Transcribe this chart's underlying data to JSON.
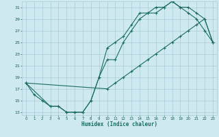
{
  "xlabel": "Humidex (Indice chaleur)",
  "bg_color": "#ceeaf0",
  "grid_color": "#aacdd8",
  "line_color": "#1a6b60",
  "marker": "+",
  "xlim": [
    -0.5,
    23.5
  ],
  "ylim": [
    12.5,
    32.0
  ],
  "xticks": [
    0,
    1,
    2,
    3,
    4,
    5,
    6,
    7,
    8,
    9,
    10,
    11,
    12,
    13,
    14,
    15,
    16,
    17,
    18,
    19,
    20,
    21,
    22,
    23
  ],
  "yticks": [
    13,
    15,
    17,
    19,
    21,
    23,
    25,
    27,
    29,
    31
  ],
  "line1_x": [
    0,
    1,
    2,
    3,
    4,
    5,
    6,
    7,
    8,
    9,
    10,
    11,
    12,
    13,
    14,
    15,
    16,
    17,
    18,
    19,
    20,
    21,
    22,
    23
  ],
  "line1_y": [
    18,
    16,
    15,
    14,
    14,
    13,
    13,
    13,
    15,
    19,
    22,
    22,
    25,
    27,
    29,
    30,
    30,
    31,
    32,
    31,
    30,
    29,
    27,
    25
  ],
  "line2_x": [
    0,
    3,
    4,
    5,
    6,
    7,
    8,
    9,
    10,
    11,
    12,
    13,
    14,
    15,
    16,
    17,
    18,
    19,
    20,
    21,
    22,
    23
  ],
  "line2_y": [
    18,
    14,
    14,
    13,
    13,
    13,
    15,
    19,
    24,
    25,
    26,
    28,
    30,
    30,
    31,
    31,
    32,
    31,
    31,
    30,
    29,
    25
  ],
  "line3_x": [
    0,
    10,
    11,
    12,
    13,
    14,
    15,
    16,
    17,
    18,
    19,
    20,
    21,
    22,
    23
  ],
  "line3_y": [
    18,
    17,
    18,
    19,
    20,
    21,
    22,
    23,
    24,
    25,
    26,
    27,
    28,
    29,
    25
  ]
}
